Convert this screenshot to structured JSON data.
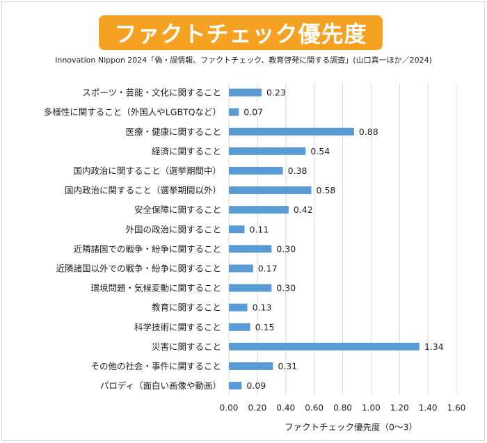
{
  "header": {
    "title": "ファクトチェック優先度",
    "subtitle": "Innovation Nippon 2024「偽・誤情報、ファクトチェック、教育啓発に関する調査」(山口真一ほか／2024)"
  },
  "colors": {
    "banner": "#f5a122",
    "bar": "#5b9bd5",
    "grid": "#d9d9d9"
  },
  "chart_data": {
    "type": "bar",
    "orientation": "horizontal",
    "categories": [
      "スポーツ・芸能・文化に関すること",
      "多様性に関すること（外国人やLGBTQなど）",
      "医療・健康に関すること",
      "経済に関すること",
      "国内政治に関すること（選挙期間中）",
      "国内政治に関すること（選挙期間以外）",
      "安全保障に関すること",
      "外国の政治に関すること",
      "近隣諸国での戦争・紛争に関すること",
      "近隣諸国以外での戦争・紛争に関すること",
      "環境問題・気候変動に関すること",
      "教育に関すること",
      "科学技術に関すること",
      "災害に関すること",
      "その他の社会・事件に関すること",
      "パロディ（面白い画像や動画）"
    ],
    "values": [
      0.23,
      0.07,
      0.88,
      0.54,
      0.38,
      0.58,
      0.42,
      0.11,
      0.3,
      0.17,
      0.3,
      0.13,
      0.15,
      1.34,
      0.31,
      0.09
    ],
    "value_labels": [
      "0.23",
      "0.07",
      "0.88",
      "0.54",
      "0.38",
      "0.58",
      "0.42",
      "0.11",
      "0.30",
      "0.17",
      "0.30",
      "0.13",
      "0.15",
      "1.34",
      "0.31",
      "0.09"
    ],
    "xlim": [
      0,
      1.6
    ],
    "xticks": [
      "0.00",
      "0.20",
      "0.40",
      "0.60",
      "0.80",
      "1.00",
      "1.20",
      "1.40",
      "1.60"
    ],
    "xlabel": "ファクトチェック優先度（0〜3）",
    "grid": true
  }
}
